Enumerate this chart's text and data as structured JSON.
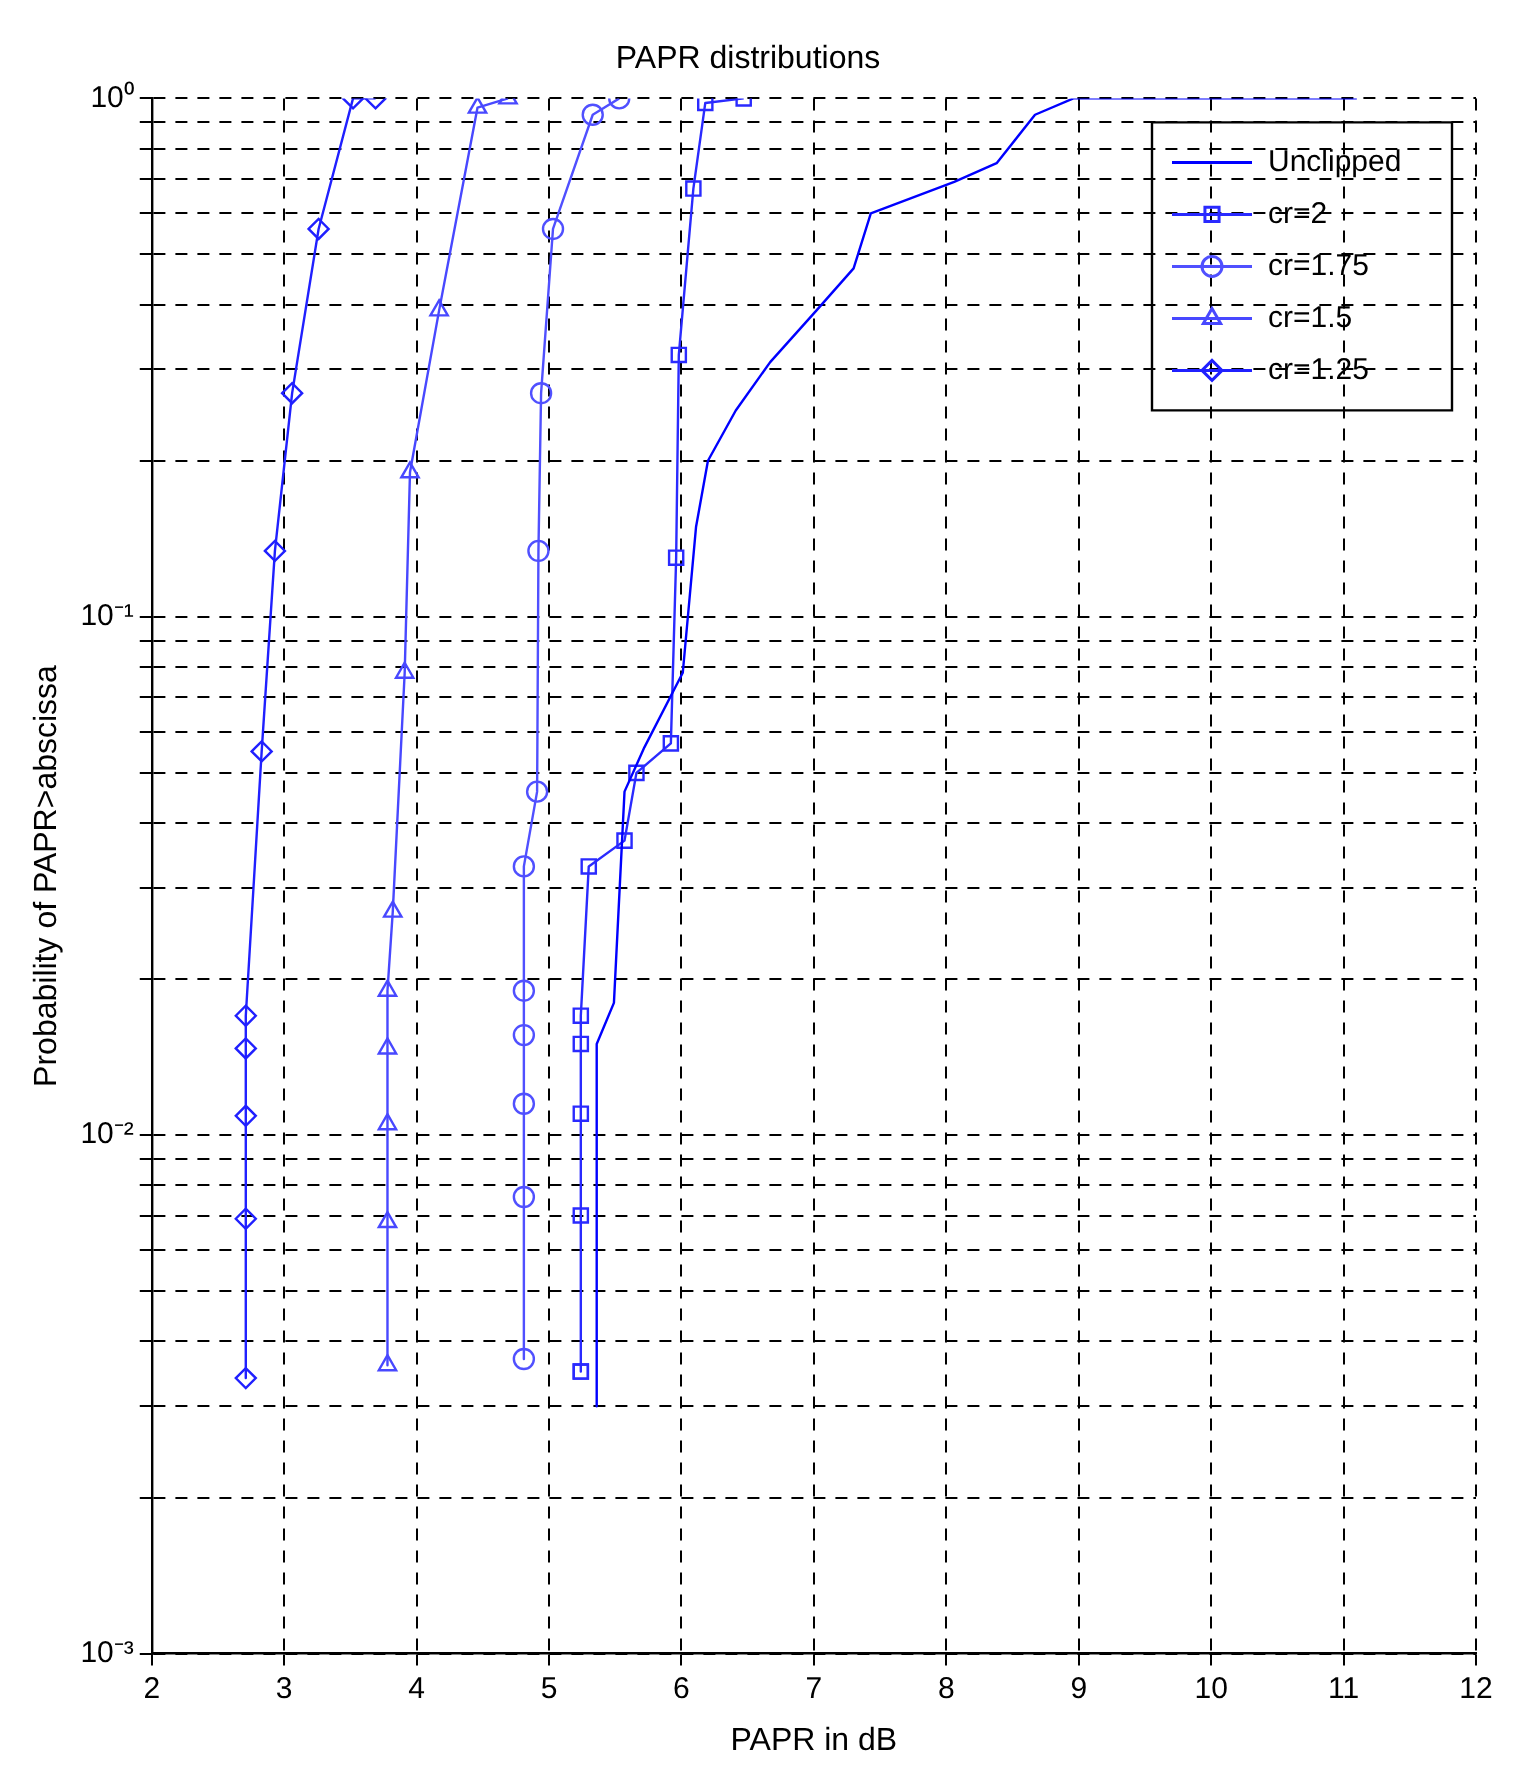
{
  "chart_data": {
    "type": "line",
    "title": "PAPR distributions",
    "xlabel": "PAPR in dB",
    "ylabel": "Probability of PAPR>abscissa",
    "xlim": [
      2,
      12
    ],
    "xticks": [
      2,
      3,
      4,
      5,
      6,
      7,
      8,
      9,
      10,
      11,
      12
    ],
    "ylim": [
      0.001,
      1
    ],
    "log": "y",
    "yticks": [
      {
        "value": 0.001,
        "label": "10⁻³"
      },
      {
        "value": 0.002,
        "label": null
      },
      {
        "value": 0.003,
        "label": null
      },
      {
        "value": 0.004,
        "label": null
      },
      {
        "value": 0.005,
        "label": null
      },
      {
        "value": 0.006,
        "label": null
      },
      {
        "value": 0.007,
        "label": null
      },
      {
        "value": 0.008,
        "label": null
      },
      {
        "value": 0.009,
        "label": null
      },
      {
        "value": 0.01,
        "label": "10⁻²"
      },
      {
        "value": 0.02,
        "label": null
      },
      {
        "value": 0.03,
        "label": null
      },
      {
        "value": 0.04,
        "label": null
      },
      {
        "value": 0.05,
        "label": null
      },
      {
        "value": 0.06,
        "label": null
      },
      {
        "value": 0.07,
        "label": null
      },
      {
        "value": 0.08,
        "label": null
      },
      {
        "value": 0.09,
        "label": null
      },
      {
        "value": 0.1,
        "label": "10⁻¹"
      },
      {
        "value": 0.2,
        "label": null
      },
      {
        "value": 0.3,
        "label": null
      },
      {
        "value": 0.4,
        "label": null
      },
      {
        "value": 0.5,
        "label": null
      },
      {
        "value": 0.6,
        "label": null
      },
      {
        "value": 0.7,
        "label": null
      },
      {
        "value": 0.8,
        "label": null
      },
      {
        "value": 0.9,
        "label": null
      },
      {
        "value": 1,
        "label": "10⁰"
      }
    ],
    "grid": true,
    "legend": "top right",
    "line_style": "solid",
    "series": [
      {
        "name": "Unclipped",
        "color": "#0000ff",
        "marker": "none",
        "x": [
          11.1,
          8.96,
          8.67,
          8.38,
          8.06,
          7.43,
          7.3,
          7.02,
          6.67,
          6.41,
          6.2,
          6.11,
          6.01,
          5.72,
          5.57,
          5.49,
          5.36,
          5.36
        ],
        "values": [
          1,
          1,
          0.93,
          0.75,
          0.69,
          0.6,
          0.47,
          0.39,
          0.31,
          0.25,
          0.2,
          0.149,
          0.078,
          0.056,
          0.046,
          0.018,
          0.015,
          0.003
        ]
      },
      {
        "name": "cr=2",
        "color": "#2a2aff",
        "marker": "square",
        "x": [
          6.47,
          6.18,
          6.09,
          5.98,
          5.96,
          5.92,
          5.66,
          5.57,
          5.3,
          5.24,
          5.24,
          5.24,
          5.24,
          5.24,
          5.24
        ],
        "values": [
          1,
          0.98,
          0.67,
          0.32,
          0.13,
          0.057,
          0.05,
          0.037,
          0.033,
          0.017,
          0.015,
          0.011,
          0.007,
          0.0035,
          0.0035
        ]
      },
      {
        "name": "cr=1.75",
        "color": "#5050ff",
        "marker": "circle",
        "x": [
          5.53,
          5.33,
          5.03,
          4.94,
          4.92,
          4.91,
          4.81,
          4.81,
          4.81,
          4.81,
          4.81,
          4.81
        ],
        "values": [
          1,
          0.93,
          0.56,
          0.27,
          0.134,
          0.046,
          0.033,
          0.019,
          0.0156,
          0.0115,
          0.0076,
          0.0037
        ]
      },
      {
        "name": "cr=1.5",
        "color": "#4848ff",
        "marker": "triangle",
        "x": [
          4.69,
          4.46,
          4.17,
          3.95,
          3.91,
          3.82,
          3.78,
          3.78,
          3.78,
          3.78,
          3.78
        ],
        "values": [
          1,
          0.96,
          0.39,
          0.19,
          0.078,
          0.027,
          0.019,
          0.0147,
          0.0105,
          0.0068,
          0.0036
        ]
      },
      {
        "name": "cr=1.25",
        "color": "#2020ff",
        "marker": "diamond",
        "x": [
          3.69,
          3.52,
          3.26,
          3.06,
          2.93,
          2.83,
          2.71,
          2.71,
          2.71,
          2.71,
          2.71
        ],
        "values": [
          1,
          1,
          0.56,
          0.27,
          0.134,
          0.055,
          0.017,
          0.0147,
          0.0109,
          0.0069,
          0.0034
        ]
      }
    ]
  }
}
